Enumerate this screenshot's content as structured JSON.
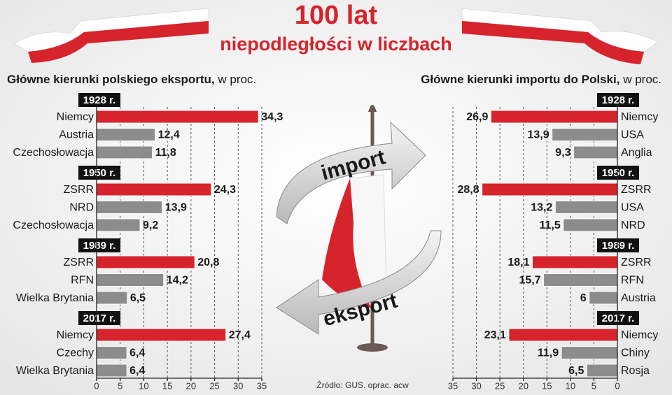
{
  "header": {
    "title": "100 lat",
    "subtitle": "niepodległości w liczbach"
  },
  "graphic": {
    "labels": [
      "import",
      "eksport"
    ]
  },
  "source": "Źródło: GUS. oprac. acw",
  "chart_data": [
    {
      "type": "bar",
      "orientation": "horizontal",
      "title": "Główne kierunki polskiego eksportu,",
      "unit": "w proc.",
      "groups": [
        "1928 r.",
        "1950 r.",
        "1989 r.",
        "2017 r."
      ],
      "categories": [
        "Niemcy",
        "Austria",
        "Czechosłowacja",
        "ZSRR",
        "NRD",
        "Czechosłowacja",
        "ZSRR",
        "RFN",
        "Wielka Brytania",
        "Niemcy",
        "Czechy",
        "Wielka Brytania"
      ],
      "values": [
        34.3,
        12.4,
        11.8,
        24.3,
        13.9,
        9.2,
        20.8,
        14.2,
        6.5,
        27.4,
        6.4,
        6.4
      ],
      "value_labels": [
        "34,3",
        "12,4",
        "11,8",
        "24,3",
        "13,9",
        "9,2",
        "20,8",
        "14,2",
        "6,5",
        "27,4",
        "6,4",
        "6,4"
      ],
      "colors": [
        "#d6232c",
        "#8c8c8c",
        "#8c8c8c",
        "#d6232c",
        "#8c8c8c",
        "#8c8c8c",
        "#d6232c",
        "#8c8c8c",
        "#8c8c8c",
        "#d6232c",
        "#8c8c8c",
        "#8c8c8c"
      ],
      "xlim": [
        0,
        35
      ],
      "xticks": [
        0,
        5,
        10,
        15,
        20,
        25,
        30,
        35
      ],
      "grid": true
    },
    {
      "type": "bar",
      "orientation": "horizontal",
      "title": "Główne kierunki importu do Polski,",
      "unit": "w proc.",
      "groups": [
        "1928 r.",
        "1950 r.",
        "1989 r.",
        "2017 r."
      ],
      "categories": [
        "Niemcy",
        "USA",
        "Anglia",
        "ZSRR",
        "USA",
        "NRD",
        "ZSRR",
        "RFN",
        "Austria",
        "Niemcy",
        "Chiny",
        "Rosja"
      ],
      "values": [
        26.9,
        13.9,
        9.3,
        28.8,
        13.2,
        11.5,
        18.1,
        15.7,
        6,
        23.1,
        11.9,
        6.5
      ],
      "value_labels": [
        "26,9",
        "13,9",
        "9,3",
        "28,8",
        "13,2",
        "11,5",
        "18,1",
        "15,7",
        "6",
        "23,1",
        "11,9",
        "6,5"
      ],
      "colors": [
        "#d6232c",
        "#8c8c8c",
        "#8c8c8c",
        "#d6232c",
        "#8c8c8c",
        "#8c8c8c",
        "#d6232c",
        "#8c8c8c",
        "#8c8c8c",
        "#d6232c",
        "#8c8c8c",
        "#8c8c8c"
      ],
      "xlim": [
        35,
        0
      ],
      "xticks": [
        35,
        30,
        25,
        20,
        15,
        10,
        5,
        0
      ],
      "grid": true
    }
  ]
}
